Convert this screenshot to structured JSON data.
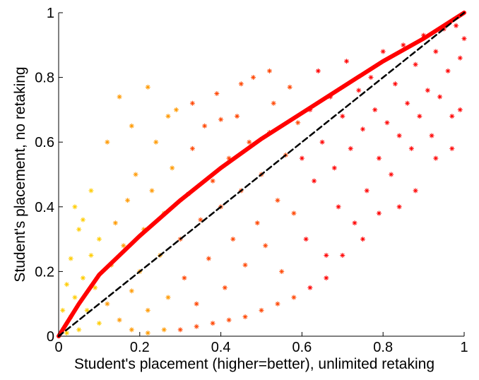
{
  "chart_data": {
    "type": "scatter",
    "xlabel": "Student's placement (higher=better), unlimited retaking",
    "ylabel": "Student's placement, no retaking",
    "xlim": [
      0,
      1
    ],
    "ylim": [
      0,
      1
    ],
    "x_ticks": [
      0,
      0.2,
      0.4,
      0.6,
      0.8,
      1
    ],
    "y_ticks": [
      0,
      0.2,
      0.4,
      0.6,
      0.8,
      1
    ],
    "x_tick_labels": [
      "0",
      "0.2",
      "0.4",
      "0.6",
      "0.8",
      "1"
    ],
    "y_tick_labels": [
      "0",
      "0.2",
      "0.4",
      "0.6",
      "0.8",
      "1"
    ],
    "grid": false,
    "marker": "*",
    "marker_colors": [
      "#ff0000",
      "#ff4500",
      "#ff9900",
      "#ffcc00"
    ],
    "series": [
      {
        "kind": "scatter",
        "color": "#ff3300",
        "points": [
          [
            0.02,
            0.01
          ],
          [
            0.03,
            0.06
          ],
          [
            0.04,
            0.12
          ],
          [
            0.05,
            0.02
          ],
          [
            0.06,
            0.18
          ],
          [
            0.07,
            0.08
          ],
          [
            0.08,
            0.25
          ],
          [
            0.09,
            0.15
          ],
          [
            0.1,
            0.04
          ],
          [
            0.1,
            0.3
          ],
          [
            0.12,
            0.1
          ],
          [
            0.13,
            0.22
          ],
          [
            0.14,
            0.35
          ],
          [
            0.15,
            0.05
          ],
          [
            0.16,
            0.28
          ],
          [
            0.17,
            0.42
          ],
          [
            0.18,
            0.14
          ],
          [
            0.19,
            0.5
          ],
          [
            0.2,
            0.2
          ],
          [
            0.21,
            0.33
          ],
          [
            0.22,
            0.08
          ],
          [
            0.23,
            0.45
          ],
          [
            0.24,
            0.6
          ],
          [
            0.25,
            0.25
          ],
          [
            0.26,
            0.38
          ],
          [
            0.27,
            0.12
          ],
          [
            0.28,
            0.52
          ],
          [
            0.29,
            0.7
          ],
          [
            0.3,
            0.3
          ],
          [
            0.31,
            0.18
          ],
          [
            0.32,
            0.44
          ],
          [
            0.33,
            0.58
          ],
          [
            0.34,
            0.1
          ],
          [
            0.35,
            0.36
          ],
          [
            0.36,
            0.65
          ],
          [
            0.37,
            0.24
          ],
          [
            0.38,
            0.48
          ],
          [
            0.39,
            0.75
          ],
          [
            0.4,
            0.4
          ],
          [
            0.41,
            0.15
          ],
          [
            0.42,
            0.55
          ],
          [
            0.43,
            0.3
          ],
          [
            0.44,
            0.68
          ],
          [
            0.45,
            0.45
          ],
          [
            0.46,
            0.22
          ],
          [
            0.47,
            0.6
          ],
          [
            0.48,
            0.8
          ],
          [
            0.49,
            0.35
          ],
          [
            0.5,
            0.5
          ],
          [
            0.51,
            0.28
          ],
          [
            0.52,
            0.63
          ],
          [
            0.53,
            0.72
          ],
          [
            0.54,
            0.42
          ],
          [
            0.55,
            0.2
          ],
          [
            0.56,
            0.56
          ],
          [
            0.57,
            0.77
          ],
          [
            0.58,
            0.38
          ],
          [
            0.59,
            0.66
          ],
          [
            0.6,
            0.55
          ],
          [
            0.61,
            0.3
          ],
          [
            0.62,
            0.7
          ],
          [
            0.63,
            0.48
          ],
          [
            0.64,
            0.82
          ],
          [
            0.65,
            0.6
          ],
          [
            0.66,
            0.25
          ],
          [
            0.67,
            0.74
          ],
          [
            0.68,
            0.52
          ],
          [
            0.69,
            0.4
          ],
          [
            0.7,
            0.68
          ],
          [
            0.71,
            0.85
          ],
          [
            0.72,
            0.58
          ],
          [
            0.73,
            0.35
          ],
          [
            0.74,
            0.76
          ],
          [
            0.75,
            0.64
          ],
          [
            0.76,
            0.45
          ],
          [
            0.77,
            0.8
          ],
          [
            0.78,
            0.7
          ],
          [
            0.79,
            0.55
          ],
          [
            0.8,
            0.88
          ],
          [
            0.81,
            0.66
          ],
          [
            0.82,
            0.5
          ],
          [
            0.83,
            0.78
          ],
          [
            0.84,
            0.62
          ],
          [
            0.85,
            0.9
          ],
          [
            0.86,
            0.72
          ],
          [
            0.87,
            0.58
          ],
          [
            0.88,
            0.84
          ],
          [
            0.89,
            0.68
          ],
          [
            0.9,
            0.93
          ],
          [
            0.91,
            0.76
          ],
          [
            0.92,
            0.62
          ],
          [
            0.93,
            0.88
          ],
          [
            0.94,
            0.74
          ],
          [
            0.95,
            0.95
          ],
          [
            0.96,
            0.82
          ],
          [
            0.97,
            0.68
          ],
          [
            0.98,
            0.96
          ],
          [
            0.99,
            0.86
          ],
          [
            0.99,
            0.7
          ],
          [
            1.0,
            0.92
          ],
          [
            0.97,
            0.58
          ],
          [
            0.93,
            0.55
          ],
          [
            0.88,
            0.45
          ],
          [
            0.84,
            0.4
          ],
          [
            0.79,
            0.38
          ],
          [
            0.75,
            0.3
          ],
          [
            0.7,
            0.25
          ],
          [
            0.66,
            0.18
          ],
          [
            0.62,
            0.15
          ],
          [
            0.58,
            0.12
          ],
          [
            0.54,
            0.1
          ],
          [
            0.5,
            0.08
          ],
          [
            0.46,
            0.06
          ],
          [
            0.42,
            0.05
          ],
          [
            0.38,
            0.04
          ],
          [
            0.34,
            0.03
          ],
          [
            0.3,
            0.02
          ],
          [
            0.26,
            0.02
          ],
          [
            0.22,
            0.01
          ],
          [
            0.18,
            0.02
          ],
          [
            0.15,
            0.74
          ],
          [
            0.22,
            0.77
          ],
          [
            0.27,
            0.68
          ],
          [
            0.33,
            0.72
          ],
          [
            0.4,
            0.67
          ],
          [
            0.45,
            0.78
          ],
          [
            0.52,
            0.82
          ],
          [
            0.18,
            0.65
          ],
          [
            0.12,
            0.6
          ],
          [
            0.08,
            0.45
          ],
          [
            0.05,
            0.33
          ],
          [
            0.03,
            0.24
          ],
          [
            0.02,
            0.16
          ],
          [
            0.01,
            0.08
          ],
          [
            0.04,
            0.4
          ],
          [
            0.06,
            0.36
          ]
        ]
      },
      {
        "kind": "line",
        "name": "",
        "color": "#ff0000",
        "points": [
          [
            0,
            0
          ],
          [
            0.05,
            0.1
          ],
          [
            0.1,
            0.19
          ],
          [
            0.15,
            0.25
          ],
          [
            0.2,
            0.31
          ],
          [
            0.3,
            0.42
          ],
          [
            0.4,
            0.52
          ],
          [
            0.5,
            0.61
          ],
          [
            0.6,
            0.69
          ],
          [
            0.7,
            0.77
          ],
          [
            0.8,
            0.85
          ],
          [
            0.9,
            0.92
          ],
          [
            1.0,
            1.0
          ]
        ]
      },
      {
        "kind": "line",
        "name": "",
        "color": "#000000",
        "dashed": true,
        "points": [
          [
            0,
            0
          ],
          [
            1,
            1
          ]
        ]
      }
    ]
  }
}
